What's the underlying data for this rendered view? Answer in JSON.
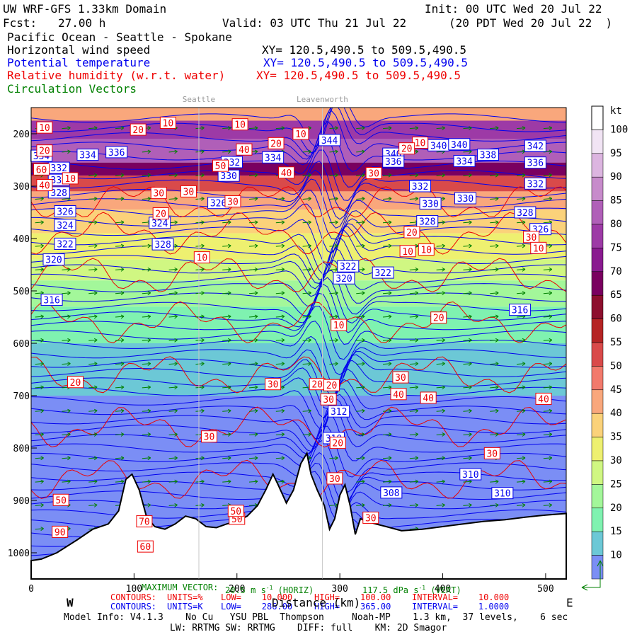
{
  "header": {
    "model_title": "UW WRF-GFS 1.33km Domain",
    "init": "Init: 00 UTC Wed 20 Jul 22",
    "fcst_label": "Fcst:",
    "fcst_value": "27.00 h",
    "valid": "Valid: 03 UTC Thu 21 Jul 22",
    "valid_local": "(20 PDT Wed 20 Jul 22  )",
    "region": "Pacific Ocean - Seattle - Spokane",
    "field_wind": "Horizontal wind speed",
    "field_theta": "Potential temperature",
    "field_rh": "Relative humidity (w.r.t. water)",
    "field_vectors": "Circulation Vectors",
    "xy_wind": "XY= 120.5,490.5 to 509.5,490.5",
    "xy_theta": "XY= 120.5,490.5 to 509.5,490.5",
    "xy_rh": "XY= 120.5,490.5 to 509.5,490.5"
  },
  "colors": {
    "wind": "#000000",
    "theta": "#0000ee",
    "rh": "#ee0000",
    "vectors": "#008000",
    "terrain": "#ffffff"
  },
  "chart_data": {
    "type": "heatmap",
    "xlabel": "Distance (km)",
    "ylabel": "Pressure (mb)",
    "xlim": [
      0,
      520
    ],
    "ylim": [
      1050,
      150
    ],
    "x_ticks": [
      0,
      100,
      200,
      300,
      400,
      500
    ],
    "y_ticks": [
      200,
      300,
      400,
      500,
      600,
      700,
      800,
      900,
      1000
    ],
    "y_tick_labels": [
      "200",
      "300",
      "400",
      "500",
      "600",
      "700",
      "800",
      "900",
      "1000"
    ],
    "west_label": "W",
    "east_label": "E",
    "location_markers": [
      {
        "name": "Seattle",
        "x": 163
      },
      {
        "name": "Leavenworth",
        "x": 283
      }
    ],
    "colorbar": {
      "unit": "kt",
      "levels": [
        10,
        15,
        20,
        25,
        30,
        35,
        40,
        45,
        50,
        55,
        60,
        65,
        70,
        75,
        80,
        85,
        90,
        95,
        100
      ],
      "colors": [
        "#7b8ef5",
        "#6cc8d6",
        "#7ff2b0",
        "#a3f79a",
        "#d0f782",
        "#eef070",
        "#fbd27a",
        "#f9a77c",
        "#f27a6c",
        "#d94a4a",
        "#b52424",
        "#8d0f2e",
        "#7a0060",
        "#8a1a90",
        "#9d3aa6",
        "#b05fb8",
        "#c78bcb",
        "#dcb5e0",
        "#f1e4f4"
      ]
    },
    "wind_speed_bands": [
      {
        "p_top": 150,
        "p_bottom": 175,
        "kt": 45
      },
      {
        "p_top": 175,
        "p_bottom": 210,
        "kt": 80
      },
      {
        "p_top": 210,
        "p_bottom": 255,
        "kt": 85
      },
      {
        "p_top": 255,
        "p_bottom": 280,
        "kt": 70
      },
      {
        "p_top": 280,
        "p_bottom": 310,
        "kt": 55
      },
      {
        "p_top": 310,
        "p_bottom": 345,
        "kt": 45
      },
      {
        "p_top": 345,
        "p_bottom": 390,
        "kt": 40
      },
      {
        "p_top": 390,
        "p_bottom": 440,
        "kt": 35
      },
      {
        "p_top": 440,
        "p_bottom": 480,
        "kt": 30
      },
      {
        "p_top": 480,
        "p_bottom": 530,
        "kt": 25
      },
      {
        "p_top": 530,
        "p_bottom": 600,
        "kt": 20
      },
      {
        "p_top": 600,
        "p_bottom": 700,
        "kt": 15
      },
      {
        "p_top": 700,
        "p_bottom": 1050,
        "kt": 10
      }
    ],
    "theta_levels_K": [
      308,
      310,
      312,
      316,
      320,
      322,
      324,
      326,
      328,
      330,
      332,
      334,
      336,
      338,
      340,
      342,
      344
    ],
    "theta_labels": [
      {
        "x": 10,
        "p": 242,
        "v": "334"
      },
      {
        "x": 27,
        "p": 265,
        "v": "332"
      },
      {
        "x": 27,
        "p": 288,
        "v": "330"
      },
      {
        "x": 33,
        "p": 348,
        "v": "326"
      },
      {
        "x": 33,
        "p": 374,
        "v": "324"
      },
      {
        "x": 27,
        "p": 312,
        "v": "328"
      },
      {
        "x": 33,
        "p": 410,
        "v": "322"
      },
      {
        "x": 22,
        "p": 440,
        "v": "320"
      },
      {
        "x": 20,
        "p": 517,
        "v": "316"
      },
      {
        "x": 55,
        "p": 240,
        "v": "334"
      },
      {
        "x": 83,
        "p": 235,
        "v": "336"
      },
      {
        "x": 125,
        "p": 370,
        "v": "324"
      },
      {
        "x": 128,
        "p": 411,
        "v": "328"
      },
      {
        "x": 195,
        "p": 254,
        "v": "332"
      },
      {
        "x": 192,
        "p": 280,
        "v": "330"
      },
      {
        "x": 182,
        "p": 332,
        "v": "326"
      },
      {
        "x": 235,
        "p": 245,
        "v": "334"
      },
      {
        "x": 290,
        "p": 212,
        "v": "344"
      },
      {
        "x": 308,
        "p": 453,
        "v": "322"
      },
      {
        "x": 304,
        "p": 476,
        "v": "320"
      },
      {
        "x": 299,
        "p": 730,
        "v": "312"
      },
      {
        "x": 294,
        "p": 781,
        "v": "310"
      },
      {
        "x": 352,
        "p": 238,
        "v": "340"
      },
      {
        "x": 352,
        "p": 253,
        "v": "336"
      },
      {
        "x": 342,
        "p": 465,
        "v": "322"
      },
      {
        "x": 378,
        "p": 300,
        "v": "332"
      },
      {
        "x": 388,
        "p": 333,
        "v": "330"
      },
      {
        "x": 385,
        "p": 367,
        "v": "328"
      },
      {
        "x": 396,
        "p": 222,
        "v": "340"
      },
      {
        "x": 416,
        "p": 220,
        "v": "340"
      },
      {
        "x": 421,
        "p": 252,
        "v": "334"
      },
      {
        "x": 422,
        "p": 323,
        "v": "330"
      },
      {
        "x": 444,
        "p": 240,
        "v": "338"
      },
      {
        "x": 490,
        "p": 223,
        "v": "342"
      },
      {
        "x": 490,
        "p": 255,
        "v": "336"
      },
      {
        "x": 490,
        "p": 295,
        "v": "332"
      },
      {
        "x": 480,
        "p": 350,
        "v": "328"
      },
      {
        "x": 495,
        "p": 382,
        "v": "326"
      },
      {
        "x": 475,
        "p": 536,
        "v": "316"
      },
      {
        "x": 350,
        "p": 885,
        "v": "308"
      },
      {
        "x": 427,
        "p": 850,
        "v": "310"
      },
      {
        "x": 458,
        "p": 886,
        "v": "310"
      }
    ],
    "rh_labels": [
      {
        "x": 13,
        "p": 188,
        "v": "10"
      },
      {
        "x": 104,
        "p": 192,
        "v": "20"
      },
      {
        "x": 133,
        "p": 179,
        "v": "10"
      },
      {
        "x": 203,
        "p": 182,
        "v": "10"
      },
      {
        "x": 207,
        "p": 230,
        "v": "40"
      },
      {
        "x": 238,
        "p": 218,
        "v": "20"
      },
      {
        "x": 262,
        "p": 200,
        "v": "10"
      },
      {
        "x": 13,
        "p": 232,
        "v": "20"
      },
      {
        "x": 10,
        "p": 268,
        "v": "60"
      },
      {
        "x": 13,
        "p": 298,
        "v": "40"
      },
      {
        "x": 38,
        "p": 285,
        "v": "10"
      },
      {
        "x": 184,
        "p": 261,
        "v": "50"
      },
      {
        "x": 248,
        "p": 274,
        "v": "40"
      },
      {
        "x": 124,
        "p": 313,
        "v": "30"
      },
      {
        "x": 153,
        "p": 310,
        "v": "30"
      },
      {
        "x": 126,
        "p": 352,
        "v": "20"
      },
      {
        "x": 196,
        "p": 329,
        "v": "30"
      },
      {
        "x": 333,
        "p": 275,
        "v": "30"
      },
      {
        "x": 378,
        "p": 217,
        "v": "10"
      },
      {
        "x": 365,
        "p": 228,
        "v": "20"
      },
      {
        "x": 370,
        "p": 388,
        "v": "20"
      },
      {
        "x": 486,
        "p": 397,
        "v": "30"
      },
      {
        "x": 166,
        "p": 436,
        "v": "10"
      },
      {
        "x": 366,
        "p": 424,
        "v": "10"
      },
      {
        "x": 384,
        "p": 421,
        "v": "10"
      },
      {
        "x": 493,
        "p": 418,
        "v": "10"
      },
      {
        "x": 299,
        "p": 565,
        "v": "10"
      },
      {
        "x": 396,
        "p": 551,
        "v": "20"
      },
      {
        "x": 43,
        "p": 674,
        "v": "20"
      },
      {
        "x": 235,
        "p": 678,
        "v": "30"
      },
      {
        "x": 278,
        "p": 678,
        "v": "20"
      },
      {
        "x": 292,
        "p": 680,
        "v": "20"
      },
      {
        "x": 289,
        "p": 707,
        "v": "30"
      },
      {
        "x": 359,
        "p": 665,
        "v": "30"
      },
      {
        "x": 357,
        "p": 697,
        "v": "40"
      },
      {
        "x": 386,
        "p": 704,
        "v": "40"
      },
      {
        "x": 173,
        "p": 778,
        "v": "30"
      },
      {
        "x": 298,
        "p": 790,
        "v": "20"
      },
      {
        "x": 448,
        "p": 810,
        "v": "30"
      },
      {
        "x": 498,
        "p": 706,
        "v": "40"
      },
      {
        "x": 29,
        "p": 899,
        "v": "50"
      },
      {
        "x": 28,
        "p": 960,
        "v": "90"
      },
      {
        "x": 200,
        "p": 935,
        "v": "50"
      },
      {
        "x": 110,
        "p": 940,
        "v": "70"
      },
      {
        "x": 111,
        "p": 988,
        "v": "60"
      },
      {
        "x": 199,
        "p": 920,
        "v": "50"
      },
      {
        "x": 295,
        "p": 858,
        "v": "30"
      },
      {
        "x": 330,
        "p": 933,
        "v": "30"
      }
    ],
    "terrain_profile": [
      [
        0,
        1015
      ],
      [
        10,
        1012
      ],
      [
        25,
        1000
      ],
      [
        45,
        975
      ],
      [
        60,
        955
      ],
      [
        75,
        945
      ],
      [
        85,
        920
      ],
      [
        92,
        860
      ],
      [
        98,
        850
      ],
      [
        105,
        880
      ],
      [
        112,
        930
      ],
      [
        120,
        950
      ],
      [
        130,
        955
      ],
      [
        140,
        945
      ],
      [
        150,
        930
      ],
      [
        160,
        935
      ],
      [
        170,
        950
      ],
      [
        180,
        952
      ],
      [
        190,
        945
      ],
      [
        200,
        940
      ],
      [
        210,
        930
      ],
      [
        220,
        910
      ],
      [
        228,
        880
      ],
      [
        235,
        850
      ],
      [
        240,
        870
      ],
      [
        248,
        905
      ],
      [
        255,
        880
      ],
      [
        262,
        830
      ],
      [
        268,
        810
      ],
      [
        272,
        850
      ],
      [
        278,
        880
      ],
      [
        285,
        910
      ],
      [
        290,
        955
      ],
      [
        295,
        935
      ],
      [
        300,
        890
      ],
      [
        305,
        870
      ],
      [
        310,
        910
      ],
      [
        315,
        965
      ],
      [
        320,
        935
      ],
      [
        326,
        940
      ],
      [
        335,
        945
      ],
      [
        345,
        950
      ],
      [
        360,
        958
      ],
      [
        380,
        955
      ],
      [
        400,
        950
      ],
      [
        420,
        945
      ],
      [
        440,
        940
      ],
      [
        460,
        937
      ],
      [
        480,
        932
      ],
      [
        500,
        928
      ],
      [
        520,
        925
      ]
    ],
    "max_vector": {
      "label": "MAXIMUM VECTOR:",
      "horiz": "20.5 m s",
      "horiz_sup": "-1",
      "horiz_tag": "(HORIZ)",
      "vert": "117.5 dPa s",
      "vert_sup": "-1",
      "vert_tag": "(VERT)"
    },
    "contours_rh": {
      "label": "CONTOURS:",
      "units": "UNITS=%",
      "low": "LOW=    10.000",
      "high": "HIGH=    100.00",
      "interval": "INTERVAL=    10.000"
    },
    "contours_theta": {
      "label": "CONTOURS:",
      "units": "UNITS=K",
      "low": "LOW=    286.00",
      "high": "HIGH=    365.00",
      "interval": "INTERVAL=    1.0000"
    }
  },
  "footer": {
    "model_info": "Model Info: V4.1.3    No Cu   YSU PBL  Thompson     Noah-MP    1.3 km,  37 levels,    6 sec",
    "schemes": "LW: RRTMG SW: RRTMG    DIFF: full    KM: 2D Smagor"
  }
}
